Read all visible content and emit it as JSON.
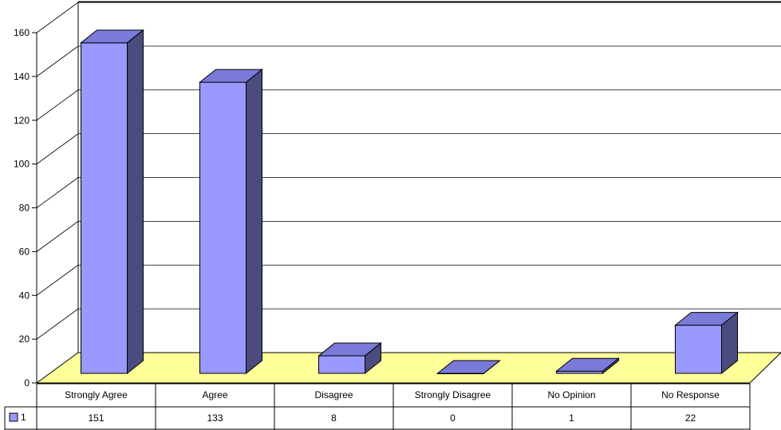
{
  "chart_data": {
    "type": "bar",
    "title": "",
    "xlabel": "",
    "ylabel": "",
    "categories": [
      "Strongly Agree",
      "Agree",
      "Disagree",
      "Strongly Disagree",
      "No Opinion",
      "No Response"
    ],
    "series": [
      {
        "name": "1",
        "values": [
          151,
          133,
          8,
          0,
          1,
          22
        ]
      }
    ],
    "ylim": [
      0,
      160
    ],
    "yticks": [
      "0",
      "20",
      "40",
      "60",
      "80",
      "100",
      "120",
      "140",
      "160"
    ],
    "grid": true,
    "data_table": true,
    "legend_in_table": true,
    "colors": {
      "bar_front": "#9999ff",
      "bar_top": "#7a7ad9",
      "bar_side": "#4b4b80",
      "floor": "#ffff99",
      "grid": "#000000"
    }
  }
}
